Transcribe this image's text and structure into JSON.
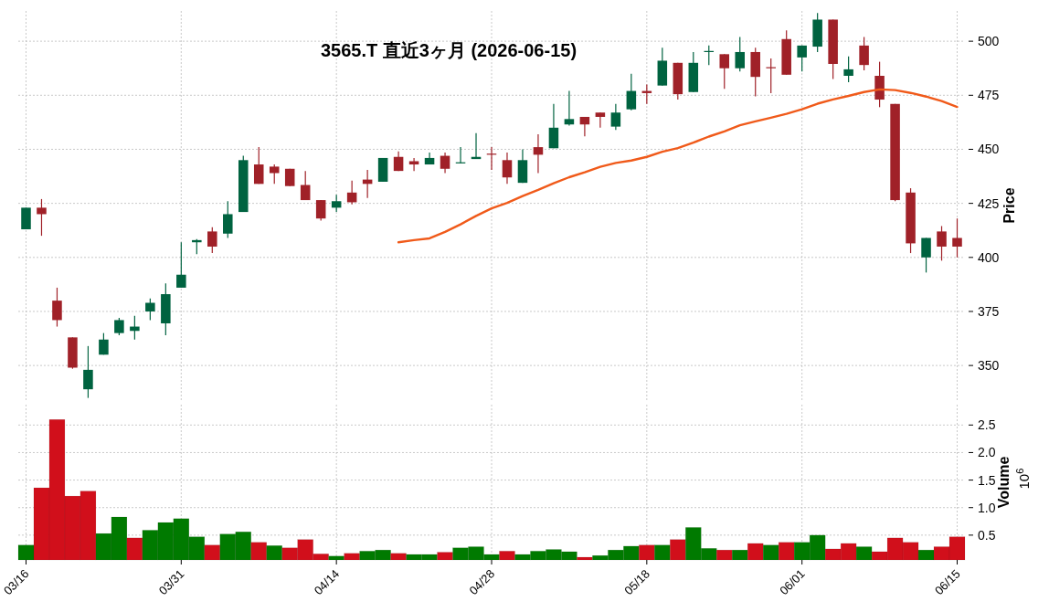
{
  "chart_data": [
    {
      "type": "candlestick",
      "title": "3565.T  直近3ヶ月  (2026-06-15)",
      "ylabel": "Price",
      "ohlc": [
        [
          413,
          423,
          413,
          423
        ],
        [
          423,
          427,
          410,
          420
        ],
        [
          380,
          386,
          368,
          371
        ],
        [
          363,
          363,
          348.5,
          349
        ],
        [
          339,
          359,
          335,
          348
        ],
        [
          355,
          365,
          355,
          362
        ],
        [
          365,
          372,
          364,
          371
        ],
        [
          366,
          373,
          362,
          368
        ],
        [
          375,
          381,
          371,
          379
        ],
        [
          369.5,
          388,
          364,
          383
        ],
        [
          386,
          407,
          386,
          392
        ],
        [
          407,
          408.5,
          401.5,
          408
        ],
        [
          412,
          414,
          402,
          405
        ],
        [
          411,
          426,
          409,
          420
        ],
        [
          421,
          447,
          421,
          445
        ],
        [
          443,
          451,
          434,
          434
        ],
        [
          442,
          443,
          434,
          439
        ],
        [
          441,
          441,
          433,
          433
        ],
        [
          433.5,
          440,
          426.5,
          426.5
        ],
        [
          426.5,
          426.5,
          417,
          418
        ],
        [
          423,
          429,
          421,
          426
        ],
        [
          430,
          435.5,
          424.5,
          425.5
        ],
        [
          436,
          440.5,
          427.5,
          434
        ],
        [
          435,
          446,
          435,
          446
        ],
        [
          446.5,
          449,
          440,
          440
        ],
        [
          444.5,
          446,
          440,
          443
        ],
        [
          443,
          448.5,
          443,
          446
        ],
        [
          447,
          448.5,
          439,
          441
        ],
        [
          443.5,
          451,
          443.5,
          444
        ],
        [
          445.5,
          457.5,
          445.5,
          446.5
        ],
        [
          448,
          451,
          440.5,
          447.5
        ],
        [
          445,
          448.5,
          434,
          437
        ],
        [
          434.5,
          450,
          434.5,
          445
        ],
        [
          451,
          457,
          439,
          447.5
        ],
        [
          450.5,
          471,
          450.5,
          460
        ],
        [
          461.5,
          477,
          461,
          464
        ],
        [
          465,
          465,
          456,
          461.5
        ],
        [
          467,
          467,
          460,
          465
        ],
        [
          460.5,
          471,
          459,
          467
        ],
        [
          468.5,
          485,
          468,
          477
        ],
        [
          477,
          480,
          471,
          476
        ],
        [
          479.5,
          497,
          479.5,
          491
        ],
        [
          490,
          490,
          473,
          475.5
        ],
        [
          476.5,
          495,
          476.5,
          490
        ],
        [
          495,
          498,
          489,
          495.5
        ],
        [
          494,
          494,
          478,
          487.5
        ],
        [
          487.5,
          502,
          486,
          495
        ],
        [
          495,
          497,
          474.5,
          483.5
        ],
        [
          488,
          492,
          476,
          487.5
        ],
        [
          501,
          505,
          484.5,
          484.5
        ],
        [
          492.5,
          498,
          486,
          498
        ],
        [
          497.5,
          513,
          495,
          510
        ],
        [
          510,
          510,
          482.5,
          489.5
        ],
        [
          484,
          493,
          481,
          487
        ],
        [
          498,
          502,
          486.5,
          489
        ],
        [
          484,
          490.5,
          469.5,
          473
        ],
        [
          471,
          471,
          426,
          426.5
        ],
        [
          430,
          432,
          402,
          406.5
        ],
        [
          400,
          409,
          393,
          409
        ],
        [
          412,
          414.5,
          398.5,
          405
        ],
        [
          409,
          418,
          400,
          405
        ]
      ],
      "colors": [
        "#006340",
        "#a02128",
        "#a02128",
        "#a02128",
        "#006340",
        "#006340",
        "#006340",
        "#006340",
        "#006340",
        "#006340",
        "#006340",
        "#006340",
        "#a02128",
        "#006340",
        "#006340",
        "#a02128",
        "#a02128",
        "#a02128",
        "#a02128",
        "#a02128",
        "#006340",
        "#a02128",
        "#a02128",
        "#006340",
        "#a02128",
        "#a02128",
        "#006340",
        "#a02128",
        "#006340",
        "#006340",
        "#a02128",
        "#a02128",
        "#006340",
        "#a02128",
        "#006340",
        "#006340",
        "#a02128",
        "#a02128",
        "#006340",
        "#006340",
        "#a02128",
        "#006340",
        "#a02128",
        "#006340",
        "#006340",
        "#a02128",
        "#006340",
        "#a02128",
        "#a02128",
        "#a02128",
        "#006340",
        "#006340",
        "#a02128",
        "#006340",
        "#a02128",
        "#a02128",
        "#a02128",
        "#a02128",
        "#006340",
        "#a02128",
        "#a02128"
      ],
      "series": [
        {
          "type": "line",
          "color": "#f05a1a",
          "values": [
            null,
            null,
            null,
            null,
            null,
            null,
            null,
            null,
            null,
            null,
            null,
            null,
            null,
            null,
            null,
            null,
            null,
            null,
            null,
            null,
            null,
            null,
            null,
            null,
            407.0,
            408.0,
            408.8,
            411.8,
            415.3,
            419.2,
            422.7,
            425.2,
            428.4,
            431.2,
            434.3,
            437.1,
            439.4,
            441.9,
            443.7,
            444.8,
            446.5,
            448.9,
            450.6,
            453.1,
            455.9,
            458.3,
            461.1,
            462.9,
            464.6,
            466.4,
            468.5,
            471.1,
            473.1,
            474.7,
            476.5,
            477.7,
            477.4,
            476.1,
            474.4,
            472.3,
            469.6
          ]
        }
      ],
      "ylim": [
        334,
        514
      ],
      "yticks": [
        350,
        375,
        400,
        425,
        450,
        475,
        500
      ],
      "grid": true,
      "tick_labels": "y"
    },
    {
      "type": "bar",
      "ylabel": "Volume",
      "annotations": [
        "10$^{6}$"
      ],
      "categories": [
        "03/16",
        null,
        null,
        null,
        null,
        null,
        null,
        null,
        null,
        null,
        "03/31",
        null,
        null,
        null,
        null,
        null,
        null,
        null,
        null,
        null,
        "04/14",
        null,
        null,
        null,
        null,
        null,
        null,
        null,
        null,
        null,
        "04/28",
        null,
        null,
        null,
        null,
        null,
        null,
        null,
        null,
        null,
        "05/18",
        null,
        null,
        null,
        null,
        null,
        null,
        null,
        null,
        null,
        "06/01",
        null,
        null,
        null,
        null,
        null,
        null,
        null,
        null,
        null,
        "06/15"
      ],
      "values": [
        0.32,
        1.36,
        2.6,
        1.21,
        1.3,
        0.53,
        0.83,
        0.45,
        0.59,
        0.73,
        0.8,
        0.47,
        0.32,
        0.52,
        0.56,
        0.37,
        0.31,
        0.27,
        0.42,
        0.16,
        0.12,
        0.17,
        0.21,
        0.23,
        0.17,
        0.15,
        0.15,
        0.19,
        0.27,
        0.29,
        0.15,
        0.21,
        0.15,
        0.21,
        0.24,
        0.2,
        0.1,
        0.13,
        0.23,
        0.3,
        0.32,
        0.32,
        0.42,
        0.64,
        0.26,
        0.23,
        0.23,
        0.35,
        0.32,
        0.37,
        0.37,
        0.5,
        0.25,
        0.35,
        0.29,
        0.2,
        0.45,
        0.37,
        0.23,
        0.29,
        0.47
      ],
      "colors": [
        "#007a00",
        "#d10f1b",
        "#d10f1b",
        "#d10f1b",
        "#d10f1b",
        "#007a00",
        "#007a00",
        "#d10f1b",
        "#007a00",
        "#007a00",
        "#007a00",
        "#007a00",
        "#d10f1b",
        "#007a00",
        "#007a00",
        "#d10f1b",
        "#007a00",
        "#d10f1b",
        "#d10f1b",
        "#d10f1b",
        "#007a00",
        "#d10f1b",
        "#007a00",
        "#007a00",
        "#d10f1b",
        "#007a00",
        "#007a00",
        "#d10f1b",
        "#007a00",
        "#007a00",
        "#007a00",
        "#d10f1b",
        "#007a00",
        "#007a00",
        "#007a00",
        "#007a00",
        "#d10f1b",
        "#007a00",
        "#007a00",
        "#007a00",
        "#d10f1b",
        "#007a00",
        "#d10f1b",
        "#007a00",
        "#007a00",
        "#d10f1b",
        "#007a00",
        "#d10f1b",
        "#007a00",
        "#d10f1b",
        "#007a00",
        "#007a00",
        "#d10f1b",
        "#d10f1b",
        "#007a00",
        "#d10f1b",
        "#d10f1b",
        "#d10f1b",
        "#007a00",
        "#d10f1b",
        "#d10f1b"
      ],
      "ylim": [
        0.05,
        2.87
      ],
      "yticks": [
        0.5,
        {
          "value": 1,
          "label": "1.0"
        },
        1.5,
        {
          "value": 2,
          "label": "2.0"
        },
        2.5
      ],
      "grid": true
    }
  ]
}
